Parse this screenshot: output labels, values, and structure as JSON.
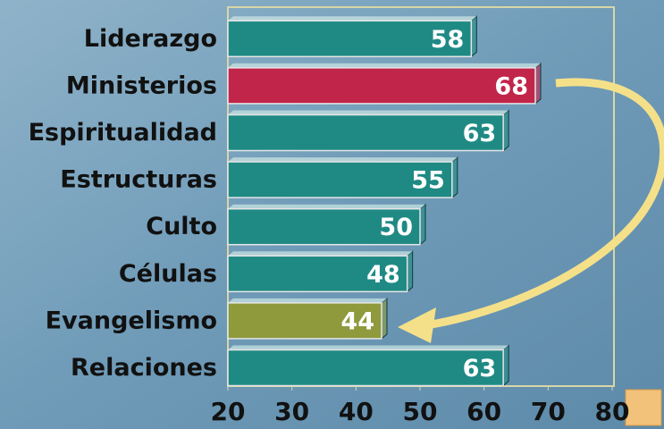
{
  "chart_data": {
    "type": "bar",
    "orientation": "horizontal",
    "categories": [
      "Liderazgo",
      "Ministerios",
      "Espiritualidad",
      "Estructuras",
      "Culto",
      "Células",
      "Evangelismo",
      "Relaciones"
    ],
    "values": [
      58,
      68,
      63,
      55,
      50,
      48,
      44,
      63
    ],
    "colors": [
      "#1f8a84",
      "#c2254a",
      "#1f8a84",
      "#1f8a84",
      "#1f8a84",
      "#1f8a84",
      "#8e9a3c",
      "#1f8a84"
    ],
    "xlim": [
      20,
      80
    ],
    "xticks": [
      20,
      30,
      40,
      50,
      60,
      70,
      80
    ],
    "grid": false
  }
}
